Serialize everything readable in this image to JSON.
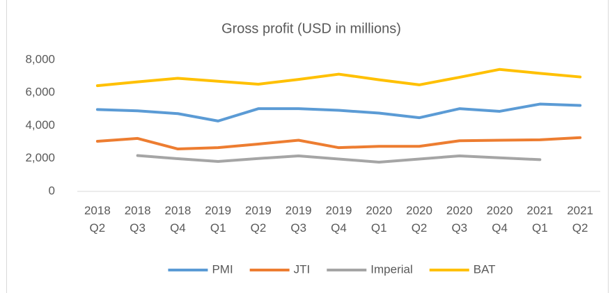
{
  "chart_data": {
    "type": "line",
    "title": "Gross profit (USD in millions)",
    "categories": [
      "2018 Q2",
      "2018 Q3",
      "2018 Q4",
      "2019 Q1",
      "2019 Q2",
      "2019 Q3",
      "2019 Q4",
      "2020 Q1",
      "2020 Q2",
      "2020 Q3",
      "2020 Q4",
      "2021 Q1",
      "2021 Q2"
    ],
    "series": [
      {
        "name": "PMI",
        "color": "#5b9bd5",
        "values": [
          4980,
          4900,
          4730,
          4280,
          5030,
          5030,
          4930,
          4760,
          4480,
          5030,
          4870,
          5310,
          5230
        ]
      },
      {
        "name": "JTI",
        "color": "#ed7d31",
        "values": [
          3050,
          3220,
          2580,
          2660,
          2880,
          3110,
          2660,
          2740,
          2740,
          3080,
          3110,
          3140,
          3270
        ]
      },
      {
        "name": "Imperial",
        "color": "#a5a5a5",
        "values": [
          null,
          2180,
          1990,
          1820,
          2000,
          2160,
          1970,
          1780,
          1970,
          2160,
          2040,
          1930,
          null
        ]
      },
      {
        "name": "BAT",
        "color": "#ffc000",
        "values": [
          6430,
          6660,
          6880,
          6700,
          6520,
          6810,
          7130,
          6790,
          6480,
          6940,
          7420,
          7180,
          6960
        ]
      }
    ],
    "ylim": [
      0,
      8000
    ],
    "yticks": [
      0,
      {
        "value": 2000,
        "label": "2,000"
      },
      {
        "value": 4000,
        "label": "4,000"
      },
      {
        "value": 6000,
        "label": "6,000"
      },
      {
        "value": 8000,
        "label": "8,000"
      }
    ],
    "grid": false,
    "legend": "bottom"
  }
}
